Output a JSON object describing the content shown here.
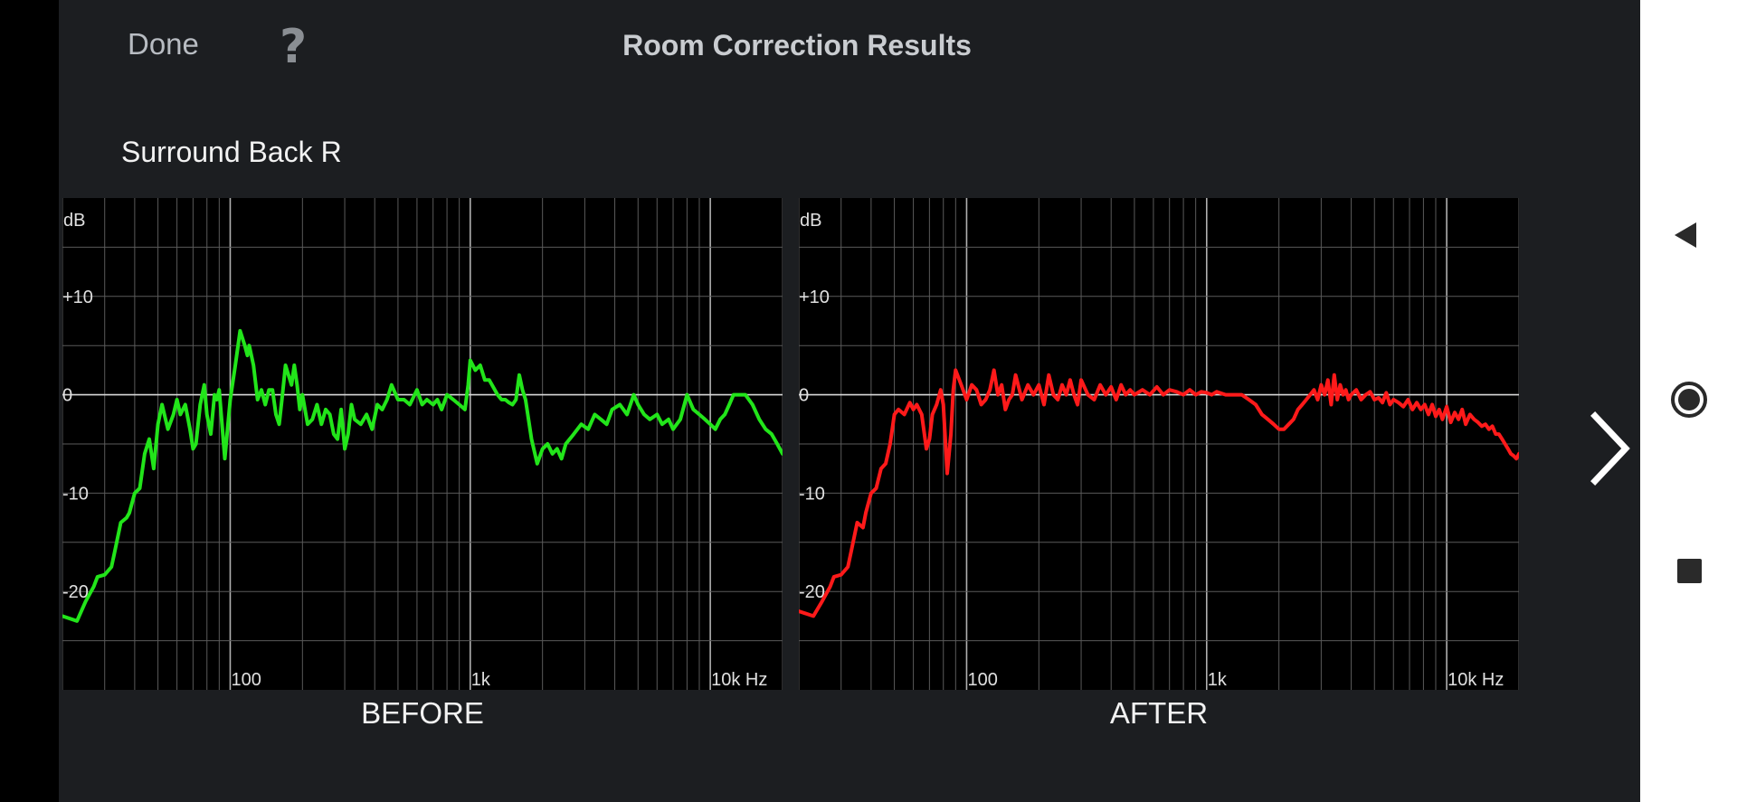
{
  "header": {
    "done_label": "Done",
    "help_label": "?",
    "title": "Room Correction Results"
  },
  "speaker_name": "Surround Back R",
  "icons": {
    "prev": "chevron-left-icon",
    "next": "chevron-right-icon",
    "system_back": "triangle-back-icon",
    "system_home": "circle-home-icon",
    "system_recents": "square-recents-icon"
  },
  "colors": {
    "before_line": "#22e51a",
    "after_line": "#ff1a1a",
    "background": "#1c1e21",
    "plot_background": "#000000",
    "grid": "#5a5a5a"
  },
  "chart_data": [
    {
      "type": "line",
      "caption": "BEFORE",
      "x_scale": "log",
      "xlim": [
        20,
        20000
      ],
      "ylim": [
        -30,
        20
      ],
      "ylabel": "dB",
      "y_ticks": [
        {
          "v": 10,
          "label": "+10"
        },
        {
          "v": 0,
          "label": "0"
        },
        {
          "v": -10,
          "label": "-10"
        },
        {
          "v": -20,
          "label": "-20"
        }
      ],
      "x_ticks": [
        {
          "v": 100,
          "label": "100"
        },
        {
          "v": 1000,
          "label": "1k"
        },
        {
          "v": 10000,
          "label": "10k Hz"
        }
      ],
      "grid": true,
      "series": [
        {
          "color": "#22e51a",
          "x": [
            20,
            23,
            25,
            27,
            28,
            30,
            32,
            33,
            35,
            37,
            38,
            40,
            42,
            44,
            46,
            48,
            50,
            52,
            55,
            58,
            60,
            62,
            65,
            68,
            70,
            72,
            75,
            78,
            80,
            83,
            86,
            88,
            90,
            95,
            100,
            105,
            110,
            115,
            118,
            120,
            125,
            130,
            135,
            140,
            145,
            150,
            155,
            160,
            165,
            170,
            175,
            180,
            185,
            190,
            195,
            200,
            210,
            220,
            230,
            240,
            250,
            260,
            270,
            280,
            290,
            300,
            310,
            320,
            330,
            350,
            370,
            390,
            410,
            430,
            450,
            470,
            500,
            530,
            560,
            600,
            630,
            660,
            700,
            730,
            760,
            800,
            850,
            900,
            950,
            980,
            1000,
            1050,
            1100,
            1150,
            1200,
            1300,
            1350,
            1400,
            1450,
            1500,
            1550,
            1600,
            1650,
            1700,
            1800,
            1900,
            2000,
            2100,
            2200,
            2300,
            2400,
            2500,
            2700,
            2900,
            3100,
            3300,
            3500,
            3700,
            3900,
            4200,
            4500,
            4800,
            5000,
            5300,
            5600,
            6000,
            6300,
            6700,
            7000,
            7500,
            8000,
            8500,
            9000,
            9500,
            10000,
            10500,
            11000,
            11500,
            12000,
            12500,
            13000,
            14000,
            15000,
            16000,
            17000,
            18000,
            19000,
            20000
          ],
          "y": [
            -22.5,
            -23,
            -21,
            -19.5,
            -18.5,
            -18.3,
            -17.5,
            -16,
            -13,
            -12.5,
            -12,
            -10,
            -9.5,
            -6,
            -4.5,
            -7.5,
            -3,
            -1,
            -3.5,
            -2,
            -0.5,
            -2,
            -1,
            -3.5,
            -5.5,
            -5,
            -1,
            1,
            -2,
            -4,
            0,
            -0.5,
            0.5,
            -6.5,
            -0.5,
            3,
            6.5,
            5,
            4,
            5,
            3,
            -0.5,
            0.5,
            -1,
            0.5,
            0.5,
            -2,
            -3,
            0,
            3,
            2,
            1,
            3,
            1,
            -1.5,
            0,
            -3,
            -2.5,
            -1,
            -3,
            -1.5,
            -2,
            -4,
            -4.5,
            -1.5,
            -5.5,
            -4,
            -1,
            -2.5,
            -3,
            -2,
            -3.5,
            -1,
            -1.5,
            -0.5,
            1,
            -0.5,
            -0.5,
            -1,
            0.5,
            -1,
            -0.5,
            -1,
            -0.5,
            -1.5,
            0,
            -0.5,
            -1,
            -1.5,
            1,
            3.5,
            2.5,
            3,
            1.5,
            1.5,
            0,
            -0.5,
            -0.5,
            -0.8,
            -1,
            -0.5,
            2,
            0.5,
            -0.5,
            -4.5,
            -7,
            -5.5,
            -5,
            -6,
            -5.5,
            -6.5,
            -5,
            -4,
            -3,
            -3.5,
            -2,
            -2.5,
            -3,
            -1.5,
            -1,
            -2,
            0,
            -1,
            -2,
            -2.5,
            -2,
            -3,
            -2.5,
            -3.5,
            -2.5,
            0,
            -1.5,
            -2,
            -2.5,
            -3,
            -3.5,
            -2.5,
            -2,
            -1,
            0,
            0,
            0,
            -1,
            -2.5,
            -3.5,
            -4,
            -5,
            -6
          ]
        }
      ]
    },
    {
      "type": "line",
      "caption": "AFTER",
      "x_scale": "log",
      "xlim": [
        20,
        20000
      ],
      "ylim": [
        -30,
        20
      ],
      "ylabel": "dB",
      "y_ticks": [
        {
          "v": 10,
          "label": "+10"
        },
        {
          "v": 0,
          "label": "0"
        },
        {
          "v": -10,
          "label": "-10"
        },
        {
          "v": -20,
          "label": "-20"
        }
      ],
      "x_ticks": [
        {
          "v": 100,
          "label": "100"
        },
        {
          "v": 1000,
          "label": "1k"
        },
        {
          "v": 10000,
          "label": "10k Hz"
        }
      ],
      "grid": true,
      "series": [
        {
          "color": "#ff1a1a",
          "x": [
            20,
            23,
            25,
            27,
            28,
            30,
            32,
            33,
            35,
            37,
            38,
            40,
            42,
            44,
            46,
            48,
            50,
            52,
            55,
            58,
            60,
            62,
            65,
            68,
            70,
            72,
            75,
            78,
            80,
            83,
            86,
            88,
            90,
            95,
            100,
            105,
            110,
            115,
            120,
            125,
            130,
            135,
            140,
            145,
            150,
            155,
            160,
            170,
            180,
            190,
            200,
            210,
            220,
            230,
            240,
            250,
            260,
            270,
            280,
            290,
            300,
            320,
            340,
            360,
            380,
            400,
            420,
            440,
            460,
            480,
            500,
            540,
            580,
            620,
            660,
            700,
            750,
            800,
            850,
            900,
            950,
            1000,
            1050,
            1100,
            1200,
            1300,
            1400,
            1500,
            1600,
            1700,
            1800,
            1900,
            2000,
            2100,
            2200,
            2300,
            2400,
            2500,
            2600,
            2700,
            2800,
            2900,
            3000,
            3100,
            3200,
            3300,
            3400,
            3500,
            3600,
            3700,
            3800,
            3900,
            4000,
            4200,
            4400,
            4600,
            4800,
            5000,
            5200,
            5400,
            5600,
            5800,
            6000,
            6300,
            6600,
            6900,
            7200,
            7500,
            7800,
            8100,
            8400,
            8700,
            9000,
            9300,
            9600,
            10000,
            10400,
            10800,
            11200,
            11600,
            12000,
            12500,
            13000,
            13500,
            14000,
            14500,
            15000,
            15500,
            16000,
            16500,
            17000,
            17500,
            18000,
            18500,
            19000,
            19500,
            20000
          ],
          "y": [
            -22,
            -22.5,
            -21,
            -19.5,
            -18.5,
            -18.3,
            -17.5,
            -16,
            -13,
            -13.5,
            -12,
            -10,
            -9.5,
            -7.5,
            -7,
            -5,
            -2,
            -1.5,
            -2,
            -0.8,
            -1.5,
            -1,
            -2,
            -5.5,
            -4.5,
            -2,
            -1,
            0.5,
            -1,
            -8,
            -4,
            0.5,
            2.5,
            1,
            -0.5,
            1,
            0.5,
            -1,
            -0.5,
            0.5,
            2.5,
            0,
            1,
            -1.5,
            -0.5,
            0,
            2,
            -0.5,
            1,
            0,
            1,
            -1,
            2,
            0,
            -0.5,
            1,
            0,
            1.5,
            0,
            -1,
            1.5,
            0,
            -0.5,
            1,
            0,
            0.8,
            -0.5,
            1,
            0,
            0.5,
            0,
            0.5,
            0,
            0.8,
            0,
            0.5,
            0.3,
            0,
            0.5,
            0,
            0.3,
            0.2,
            0,
            0.3,
            0,
            0,
            0,
            -0.5,
            -1,
            -2,
            -2.5,
            -3,
            -3.5,
            -3.5,
            -3,
            -2.5,
            -1.5,
            -1,
            -0.5,
            0,
            0.5,
            -0.5,
            1,
            0,
            1.5,
            -1,
            2,
            -0.5,
            1,
            0,
            0.5,
            -0.5,
            0,
            0.5,
            -0.5,
            0,
            0.3,
            -0.5,
            -0.3,
            -0.8,
            0.2,
            -1,
            -0.5,
            -0.8,
            -1.2,
            -0.5,
            -1.5,
            -0.8,
            -1.5,
            -1,
            -2,
            -1,
            -2.2,
            -1.5,
            -2.5,
            -1.2,
            -2.8,
            -1.8,
            -2.5,
            -1.5,
            -3,
            -2,
            -2.5,
            -2.8,
            -3.2,
            -3,
            -3.5,
            -3.2,
            -4,
            -4,
            -4.5,
            -5,
            -5.5,
            -6,
            -6.2,
            -6.5,
            -6
          ]
        }
      ]
    }
  ]
}
